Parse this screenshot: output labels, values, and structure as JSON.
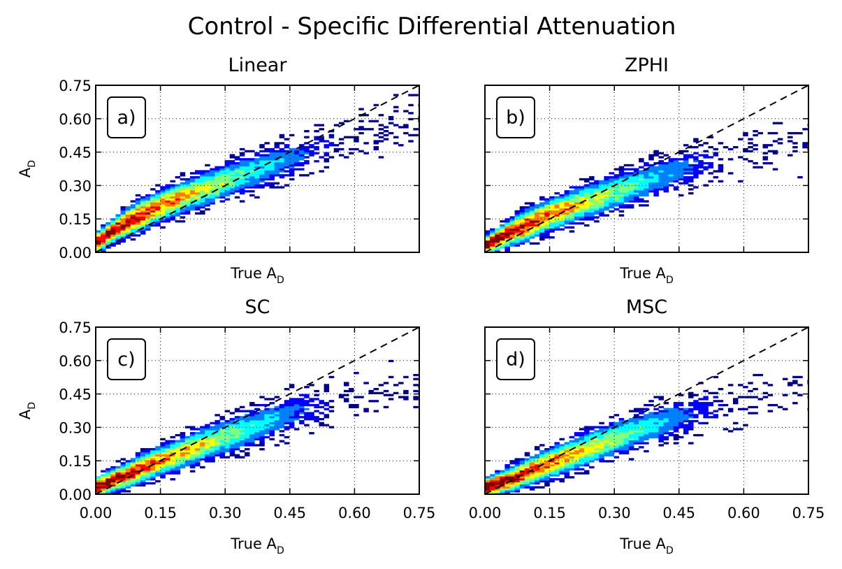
{
  "figure": {
    "title": "Control - Specific Differential Attenuation"
  },
  "colormap": [
    "#00008f",
    "#0000ff",
    "#0080ff",
    "#00ffff",
    "#80ff80",
    "#ffff00",
    "#ff8000",
    "#ff0000",
    "#800000"
  ],
  "chart_data": [
    {
      "type": "heatmap",
      "title": "Linear",
      "panel_label": "a)",
      "xlabel": "True A",
      "xlabel_sub": "D",
      "ylabel": "A",
      "ylabel_sub": "D",
      "xlim": [
        0,
        0.75
      ],
      "ylim": [
        0,
        0.75
      ],
      "ticks": [
        "0.00",
        "0.15",
        "0.30",
        "0.45",
        "0.60",
        "0.75"
      ],
      "show_xticklabels": false,
      "show_yticklabels": true,
      "grid": true,
      "one_to_one_line": true,
      "ridge_points": [
        [
          0.0,
          0.04
        ],
        [
          0.05,
          0.11
        ],
        [
          0.15,
          0.21
        ],
        [
          0.3,
          0.32
        ],
        [
          0.45,
          0.42
        ],
        [
          0.6,
          0.52
        ],
        [
          0.75,
          0.6
        ]
      ],
      "scatter_extent": [
        [
          0.02,
          0.06
        ],
        [
          0.1,
          0.09
        ],
        [
          0.25,
          0.1
        ],
        [
          0.5,
          0.12
        ],
        [
          0.75,
          0.12
        ]
      ]
    },
    {
      "type": "heatmap",
      "title": "ZPHI",
      "panel_label": "b)",
      "xlabel": "True A",
      "xlabel_sub": "D",
      "ylabel": "",
      "ylabel_sub": "",
      "xlim": [
        0,
        0.75
      ],
      "ylim": [
        0,
        0.75
      ],
      "ticks": [
        "0.00",
        "0.15",
        "0.30",
        "0.45",
        "0.60",
        "0.75"
      ],
      "show_xticklabels": false,
      "show_yticklabels": false,
      "grid": true,
      "one_to_one_line": true,
      "ridge_points": [
        [
          0.0,
          0.03
        ],
        [
          0.05,
          0.08
        ],
        [
          0.15,
          0.17
        ],
        [
          0.3,
          0.27
        ],
        [
          0.45,
          0.37
        ],
        [
          0.6,
          0.44
        ],
        [
          0.75,
          0.48
        ]
      ],
      "scatter_extent": [
        [
          0.02,
          0.06
        ],
        [
          0.1,
          0.09
        ],
        [
          0.25,
          0.1
        ],
        [
          0.5,
          0.12
        ],
        [
          0.75,
          0.12
        ]
      ]
    },
    {
      "type": "heatmap",
      "title": "SC",
      "panel_label": "c)",
      "xlabel": "True A",
      "xlabel_sub": "D",
      "ylabel": "A",
      "ylabel_sub": "D",
      "xlim": [
        0,
        0.75
      ],
      "ylim": [
        0,
        0.75
      ],
      "ticks": [
        "0.00",
        "0.15",
        "0.30",
        "0.45",
        "0.60",
        "0.75"
      ],
      "show_xticklabels": true,
      "show_yticklabels": true,
      "grid": true,
      "one_to_one_line": true,
      "ridge_points": [
        [
          0.0,
          0.03
        ],
        [
          0.05,
          0.07
        ],
        [
          0.15,
          0.15
        ],
        [
          0.3,
          0.26
        ],
        [
          0.45,
          0.36
        ],
        [
          0.6,
          0.44
        ],
        [
          0.75,
          0.48
        ]
      ],
      "scatter_extent": [
        [
          0.02,
          0.06
        ],
        [
          0.1,
          0.08
        ],
        [
          0.25,
          0.1
        ],
        [
          0.5,
          0.12
        ],
        [
          0.75,
          0.12
        ]
      ]
    },
    {
      "type": "heatmap",
      "title": "MSC",
      "panel_label": "d)",
      "xlabel": "True A",
      "xlabel_sub": "D",
      "ylabel": "",
      "ylabel_sub": "",
      "xlim": [
        0,
        0.75
      ],
      "ylim": [
        0,
        0.75
      ],
      "ticks": [
        "0.00",
        "0.15",
        "0.30",
        "0.45",
        "0.60",
        "0.75"
      ],
      "show_xticklabels": true,
      "show_yticklabels": false,
      "grid": true,
      "one_to_one_line": true,
      "ridge_points": [
        [
          0.0,
          0.03
        ],
        [
          0.05,
          0.06
        ],
        [
          0.15,
          0.14
        ],
        [
          0.3,
          0.25
        ],
        [
          0.45,
          0.35
        ],
        [
          0.6,
          0.42
        ],
        [
          0.75,
          0.47
        ]
      ],
      "scatter_extent": [
        [
          0.02,
          0.06
        ],
        [
          0.1,
          0.08
        ],
        [
          0.25,
          0.1
        ],
        [
          0.5,
          0.12
        ],
        [
          0.75,
          0.12
        ]
      ]
    }
  ]
}
